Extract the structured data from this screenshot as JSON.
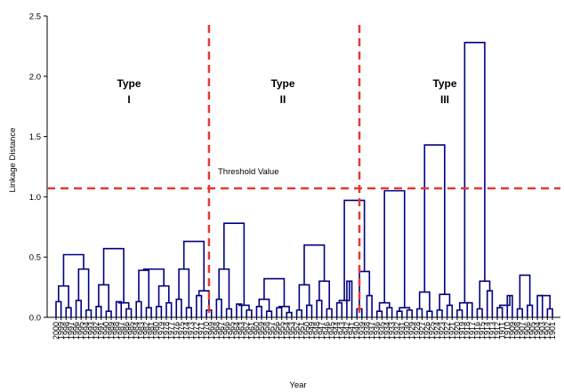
{
  "chart_data": {
    "type": "dendrogram",
    "title": "",
    "xlabel": "Year",
    "ylabel": "Linkage Distance",
    "ylim": [
      0,
      2.5
    ],
    "yticks": [
      "0.0",
      "0.5",
      "1.0",
      "1.5",
      "2.0",
      "2.5"
    ],
    "leaves": [
      "2000",
      "1999",
      "1998",
      "1997",
      "1996",
      "1995",
      "1994",
      "1993",
      "1992",
      "1991",
      "1990",
      "1989",
      "1988",
      "1987",
      "1986",
      "1985",
      "1984",
      "1983",
      "1982",
      "1981",
      "1980",
      "1979",
      "1978",
      "1977",
      "1976",
      "1975",
      "1974",
      "1973",
      "1972",
      "1971",
      "1970",
      "1969",
      "1968",
      "1967",
      "1966",
      "1965",
      "1964",
      "1963",
      "1962",
      "1961",
      "1960",
      "1959",
      "1958",
      "1957",
      "1956",
      "1955",
      "1954",
      "1953",
      "1952",
      "1951",
      "1950",
      "1949",
      "1948",
      "1947",
      "1946",
      "1945",
      "1944",
      "1943",
      "1942",
      "1941",
      "1940",
      "1939",
      "1938",
      "1937",
      "1936",
      "1935",
      "1934",
      "1933",
      "1932",
      "1931",
      "1930",
      "1929",
      "1928",
      "1927",
      "1926",
      "1925",
      "1924",
      "1923",
      "1922",
      "1921",
      "1920",
      "1919",
      "1918",
      "1917",
      "1916",
      "1915",
      "1914",
      "1913",
      "1912",
      "1911",
      "1910",
      "1909",
      "1908",
      "1907",
      "1906",
      "1905",
      "1904",
      "1903",
      "1902",
      "1901"
    ],
    "clusters": [
      {
        "label_top": "Type",
        "label_bottom": "I",
        "leaf_range": [
          "2000",
          "1970"
        ]
      },
      {
        "label_top": "Type",
        "label_bottom": "II",
        "leaf_range": [
          "1969",
          "1940"
        ]
      },
      {
        "label_top": "Type",
        "label_bottom": "III",
        "leaf_range": [
          "1939",
          "1901"
        ]
      }
    ],
    "threshold": {
      "value": 1.07,
      "label": "Threshold Value",
      "color": "#e53935"
    },
    "line_color": "#000080",
    "divider_color": "#e53935",
    "merges": [
      {
        "a": [
          0,
          1
        ],
        "h": 0.13
      },
      {
        "a": [
          2,
          3
        ],
        "h": 0.08
      },
      {
        "a": [
          4,
          5
        ],
        "h": 0.14
      },
      {
        "a": [
          6,
          7
        ],
        "h": 0.06
      },
      {
        "a": [
          8,
          9
        ],
        "h": 0.09
      },
      {
        "a": [
          10,
          11
        ],
        "h": 0.05
      },
      {
        "a": [
          12,
          13
        ],
        "h": 0.13
      },
      {
        "a": [
          14,
          15
        ],
        "h": 0.07
      },
      {
        "a": [
          16,
          17
        ],
        "h": 0.13
      },
      {
        "a": [
          18,
          19
        ],
        "h": 0.08
      },
      {
        "a": [
          20,
          21
        ],
        "h": 0.09
      },
      {
        "a": [
          22,
          23
        ],
        "h": 0.12
      },
      {
        "a": [
          24,
          25
        ],
        "h": 0.15
      },
      {
        "a": [
          26,
          27
        ],
        "h": 0.08
      },
      {
        "a": [
          28,
          29
        ],
        "h": 0.18
      },
      {
        "a": [
          30,
          31
        ],
        "h": 0.06
      },
      {
        "a": [
          32,
          33
        ],
        "h": 0.15
      },
      {
        "a": [
          34,
          35
        ],
        "h": 0.07
      },
      {
        "a": [
          36,
          37
        ],
        "h": 0.11
      },
      {
        "a": [
          38,
          39
        ],
        "h": 0.06
      },
      {
        "a": [
          40,
          41
        ],
        "h": 0.09
      },
      {
        "a": [
          42,
          43
        ],
        "h": 0.05
      },
      {
        "a": [
          44,
          45
        ],
        "h": 0.08
      },
      {
        "a": [
          46,
          47
        ],
        "h": 0.04
      },
      {
        "a": [
          48,
          49
        ],
        "h": 0.06
      },
      {
        "a": [
          50,
          51
        ],
        "h": 0.1
      },
      {
        "a": [
          52,
          53
        ],
        "h": 0.14
      },
      {
        "a": [
          54,
          55
        ],
        "h": 0.07
      },
      {
        "a": [
          56,
          57
        ],
        "h": 0.12
      },
      {
        "a": [
          58,
          59
        ],
        "h": 0.3
      },
      {
        "a": [
          60,
          61
        ],
        "h": 0.07
      },
      {
        "a": [
          62,
          63
        ],
        "h": 0.18
      },
      {
        "a": [
          64,
          65
        ],
        "h": 0.05
      },
      {
        "a": [
          66,
          67
        ],
        "h": 0.08
      },
      {
        "a": [
          68,
          69
        ],
        "h": 0.05
      },
      {
        "a": [
          70,
          71
        ],
        "h": 0.06
      },
      {
        "a": [
          72,
          73
        ],
        "h": 0.07
      },
      {
        "a": [
          74,
          75
        ],
        "h": 0.05
      },
      {
        "a": [
          76,
          77
        ],
        "h": 0.06
      },
      {
        "a": [
          78,
          79
        ],
        "h": 0.1
      },
      {
        "a": [
          80,
          81
        ],
        "h": 0.06
      },
      {
        "a": [
          82,
          83
        ],
        "h": 0.12
      },
      {
        "a": [
          84,
          85
        ],
        "h": 0.07
      },
      {
        "a": [
          86,
          87
        ],
        "h": 0.22
      },
      {
        "a": [
          88,
          89
        ],
        "h": 0.08
      },
      {
        "a": [
          90,
          91
        ],
        "h": 0.18
      },
      {
        "a": [
          92,
          93
        ],
        "h": 0.07
      },
      {
        "a": [
          94,
          95
        ],
        "h": 0.1
      },
      {
        "a": [
          96,
          97
        ],
        "h": 0.18
      },
      {
        "a": [
          98,
          99
        ],
        "h": 0.07
      },
      {
        "a": [
          100,
          101
        ],
        "h": 0.26
      },
      {
        "a": [
          102,
          103
        ],
        "h": 0.4
      },
      {
        "a": [
          104,
          105
        ],
        "h": 0.27
      },
      {
        "a": [
          106,
          107
        ],
        "h": 0.12
      },
      {
        "a": [
          108,
          109
        ],
        "h": 0.39
      },
      {
        "a": [
          110,
          111
        ],
        "h": 0.26
      },
      {
        "a": [
          112,
          113
        ],
        "h": 0.4
      },
      {
        "a": [
          114,
          115
        ],
        "h": 0.22
      },
      {
        "a": [
          116,
          117
        ],
        "h": 0.4
      },
      {
        "a": [
          118,
          119
        ],
        "h": 0.1
      },
      {
        "a": [
          120,
          121
        ],
        "h": 0.15
      },
      {
        "a": [
          122,
          123
        ],
        "h": 0.09
      },
      {
        "a": [
          124,
          125
        ],
        "h": 0.27
      },
      {
        "a": [
          126,
          127
        ],
        "h": 0.3
      },
      {
        "a": [
          128,
          129
        ],
        "h": 0.14
      },
      {
        "a": [
          130,
          131
        ],
        "h": 0.38
      },
      {
        "a": [
          132,
          133
        ],
        "h": 0.12
      },
      {
        "a": [
          134,
          135
        ],
        "h": 0.08
      },
      {
        "a": [
          136,
          137
        ],
        "h": 0.21
      },
      {
        "a": [
          138,
          139
        ],
        "h": 0.19
      },
      {
        "a": [
          140,
          141
        ],
        "h": 0.12
      },
      {
        "a": [
          142,
          143
        ],
        "h": 0.3
      },
      {
        "a": [
          144,
          145
        ],
        "h": 0.1
      },
      {
        "a": [
          146,
          147
        ],
        "h": 0.35
      },
      {
        "a": [
          148,
          149
        ],
        "h": 0.18
      },
      {
        "a": [
          150,
          151
        ],
        "h": 0.52
      },
      {
        "a": [
          152,
          153
        ],
        "h": 0.57
      },
      {
        "a": [
          154,
          155
        ],
        "h": 0.4
      },
      {
        "a": [
          156,
          157
        ],
        "h": 0.63
      },
      {
        "a": [
          158,
          159
        ],
        "h": 0.78
      },
      {
        "a": [
          160,
          161
        ],
        "h": 0.32
      },
      {
        "a": [
          162,
          163
        ],
        "h": 0.6
      },
      {
        "a": [
          164,
          165
        ],
        "h": 0.97
      },
      {
        "a": [
          166,
          167
        ],
        "h": 1.05
      },
      {
        "a": [
          168,
          169
        ],
        "h": 1.43
      },
      {
        "a": [
          170,
          171
        ],
        "h": 2.28
      }
    ]
  }
}
